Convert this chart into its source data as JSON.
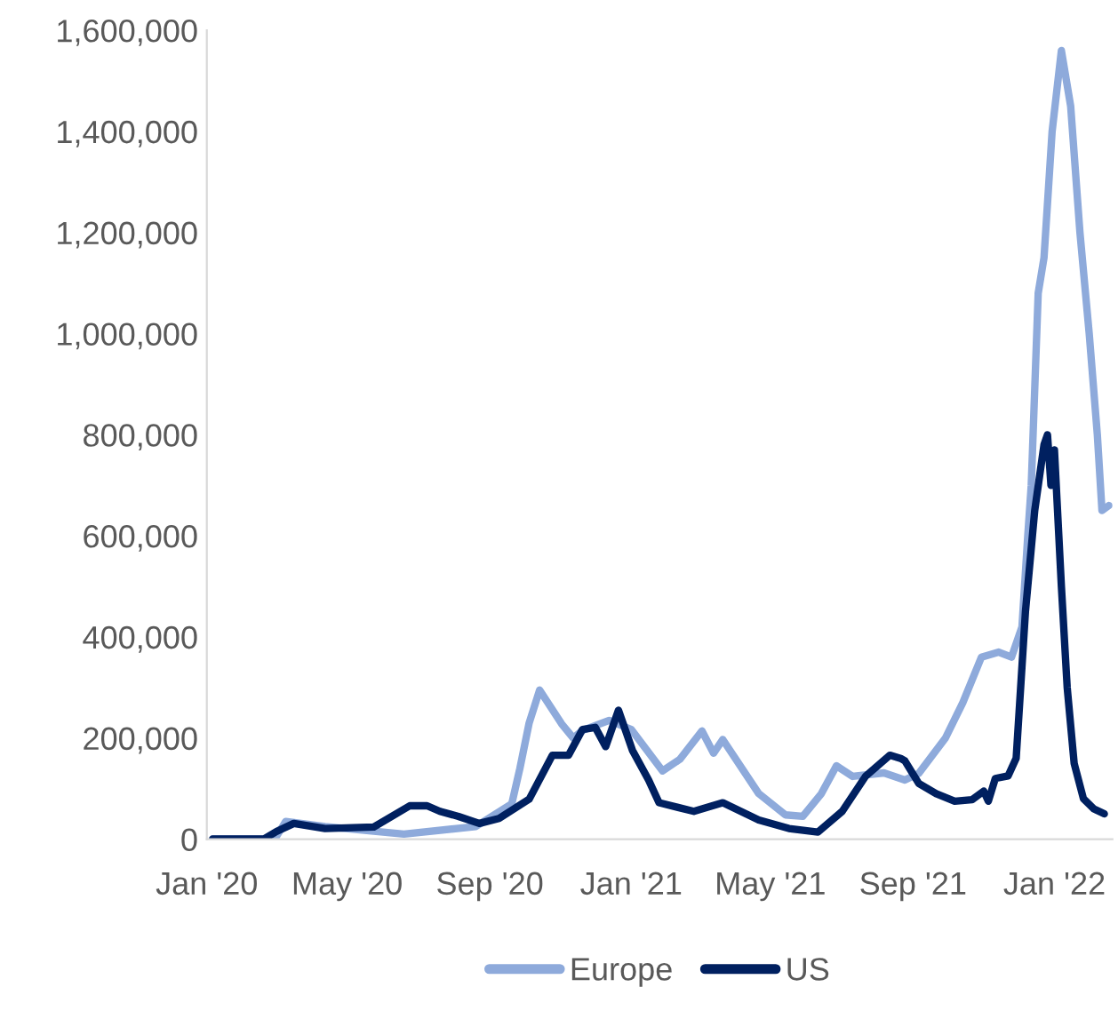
{
  "chart_data": {
    "type": "line",
    "legend": "bottom",
    "grid": false,
    "marker": "none",
    "line_style": "solid",
    "xlim": [
      "2020-01-01",
      "2022-02-20"
    ],
    "xticks": [
      {
        "value": "2020-01-01",
        "label": "Jan '20"
      },
      {
        "value": "2020-05-01",
        "label": "May '20"
      },
      {
        "value": "2020-09-01",
        "label": "Sep '20"
      },
      {
        "value": "2021-01-01",
        "label": "Jan '21"
      },
      {
        "value": "2021-05-01",
        "label": "May '21"
      },
      {
        "value": "2021-09-01",
        "label": "Sep '21"
      },
      {
        "value": "2022-01-01",
        "label": "Jan '22"
      }
    ],
    "ylim": [
      0,
      1600000
    ],
    "yticks": [
      {
        "value": 0,
        "label": "0"
      },
      {
        "value": 200000,
        "label": "200,000"
      },
      {
        "value": 400000,
        "label": "400,000"
      },
      {
        "value": 600000,
        "label": "600,000"
      },
      {
        "value": 800000,
        "label": "800,000"
      },
      {
        "value": 1000000,
        "label": "1,000,000"
      },
      {
        "value": 1200000,
        "label": "1,200,000"
      },
      {
        "value": 1400000,
        "label": "1,400,000"
      },
      {
        "value": 1600000,
        "label": "1,600,000"
      }
    ],
    "series": [
      {
        "name": "Europe",
        "color": "#8eaadb",
        "x": [
          "2020-01-06",
          "2020-02-19",
          "2020-03-01",
          "2020-03-09",
          "2020-04-12",
          "2020-06-19",
          "2020-08-20",
          "2020-09-20",
          "2020-09-27",
          "2020-10-05",
          "2020-10-14",
          "2020-11-02",
          "2020-11-12",
          "2020-11-20",
          "2020-12-13",
          "2021-01-01",
          "2021-01-28",
          "2021-02-12",
          "2021-03-03",
          "2021-03-13",
          "2021-03-21",
          "2021-04-21",
          "2021-05-14",
          "2021-05-29",
          "2021-06-14",
          "2021-06-27",
          "2021-07-11",
          "2021-08-07",
          "2021-08-25",
          "2021-09-06",
          "2021-09-29",
          "2021-10-14",
          "2021-10-30",
          "2021-11-14",
          "2021-11-25",
          "2021-12-04",
          "2021-12-09",
          "2021-12-12",
          "2021-12-18",
          "2021-12-23",
          "2021-12-30",
          "2022-01-07",
          "2022-01-15",
          "2022-01-23",
          "2022-01-31",
          "2022-02-07",
          "2022-02-11",
          "2022-02-17"
        ],
        "values": [
          0,
          0,
          5000,
          35000,
          25000,
          10000,
          25000,
          70000,
          140000,
          230000,
          295000,
          228000,
          200000,
          215000,
          235000,
          217000,
          135000,
          158000,
          214000,
          170000,
          197000,
          90000,
          48000,
          45000,
          90000,
          145000,
          124000,
          131000,
          117000,
          130000,
          200000,
          270000,
          360000,
          370000,
          360000,
          420000,
          600000,
          700000,
          1080000,
          1150000,
          1400000,
          1560000,
          1450000,
          1200000,
          1000000,
          800000,
          650000,
          660000
        ]
      },
      {
        "name": "US",
        "color": "#002060",
        "x": [
          "2020-01-06",
          "2020-02-19",
          "2020-03-01",
          "2020-03-16",
          "2020-04-12",
          "2020-05-24",
          "2020-06-24",
          "2020-07-09",
          "2020-07-20",
          "2020-08-05",
          "2020-08-23",
          "2020-09-09",
          "2020-10-05",
          "2020-10-25",
          "2020-11-08",
          "2020-11-20",
          "2020-12-01",
          "2020-12-10",
          "2020-12-21",
          "2021-01-02",
          "2021-01-16",
          "2021-01-25",
          "2021-02-24",
          "2021-03-21",
          "2021-04-21",
          "2021-05-17",
          "2021-06-11",
          "2021-07-02",
          "2021-07-22",
          "2021-08-12",
          "2021-08-22",
          "2021-08-25",
          "2021-09-06",
          "2021-09-21",
          "2021-10-07",
          "2021-10-22",
          "2021-11-01",
          "2021-11-05",
          "2021-11-11",
          "2021-11-22",
          "2021-11-29",
          "2021-12-07",
          "2021-12-15",
          "2021-12-23",
          "2021-12-26",
          "2021-12-29",
          "2022-01-01",
          "2022-01-07",
          "2022-01-12",
          "2022-01-18",
          "2022-01-26",
          "2022-02-04",
          "2022-02-13"
        ],
        "values": [
          0,
          0,
          15000,
          31000,
          21000,
          24000,
          66000,
          66000,
          55000,
          45000,
          31000,
          41000,
          79000,
          166000,
          166000,
          217000,
          221000,
          183000,
          255000,
          176000,
          117000,
          72000,
          55000,
          72000,
          38000,
          21000,
          14000,
          55000,
          124000,
          166000,
          159000,
          155000,
          110000,
          90000,
          75000,
          78000,
          95000,
          75000,
          120000,
          125000,
          160000,
          450000,
          650000,
          780000,
          800000,
          700000,
          770000,
          500000,
          300000,
          150000,
          80000,
          60000,
          50000
        ]
      }
    ]
  }
}
